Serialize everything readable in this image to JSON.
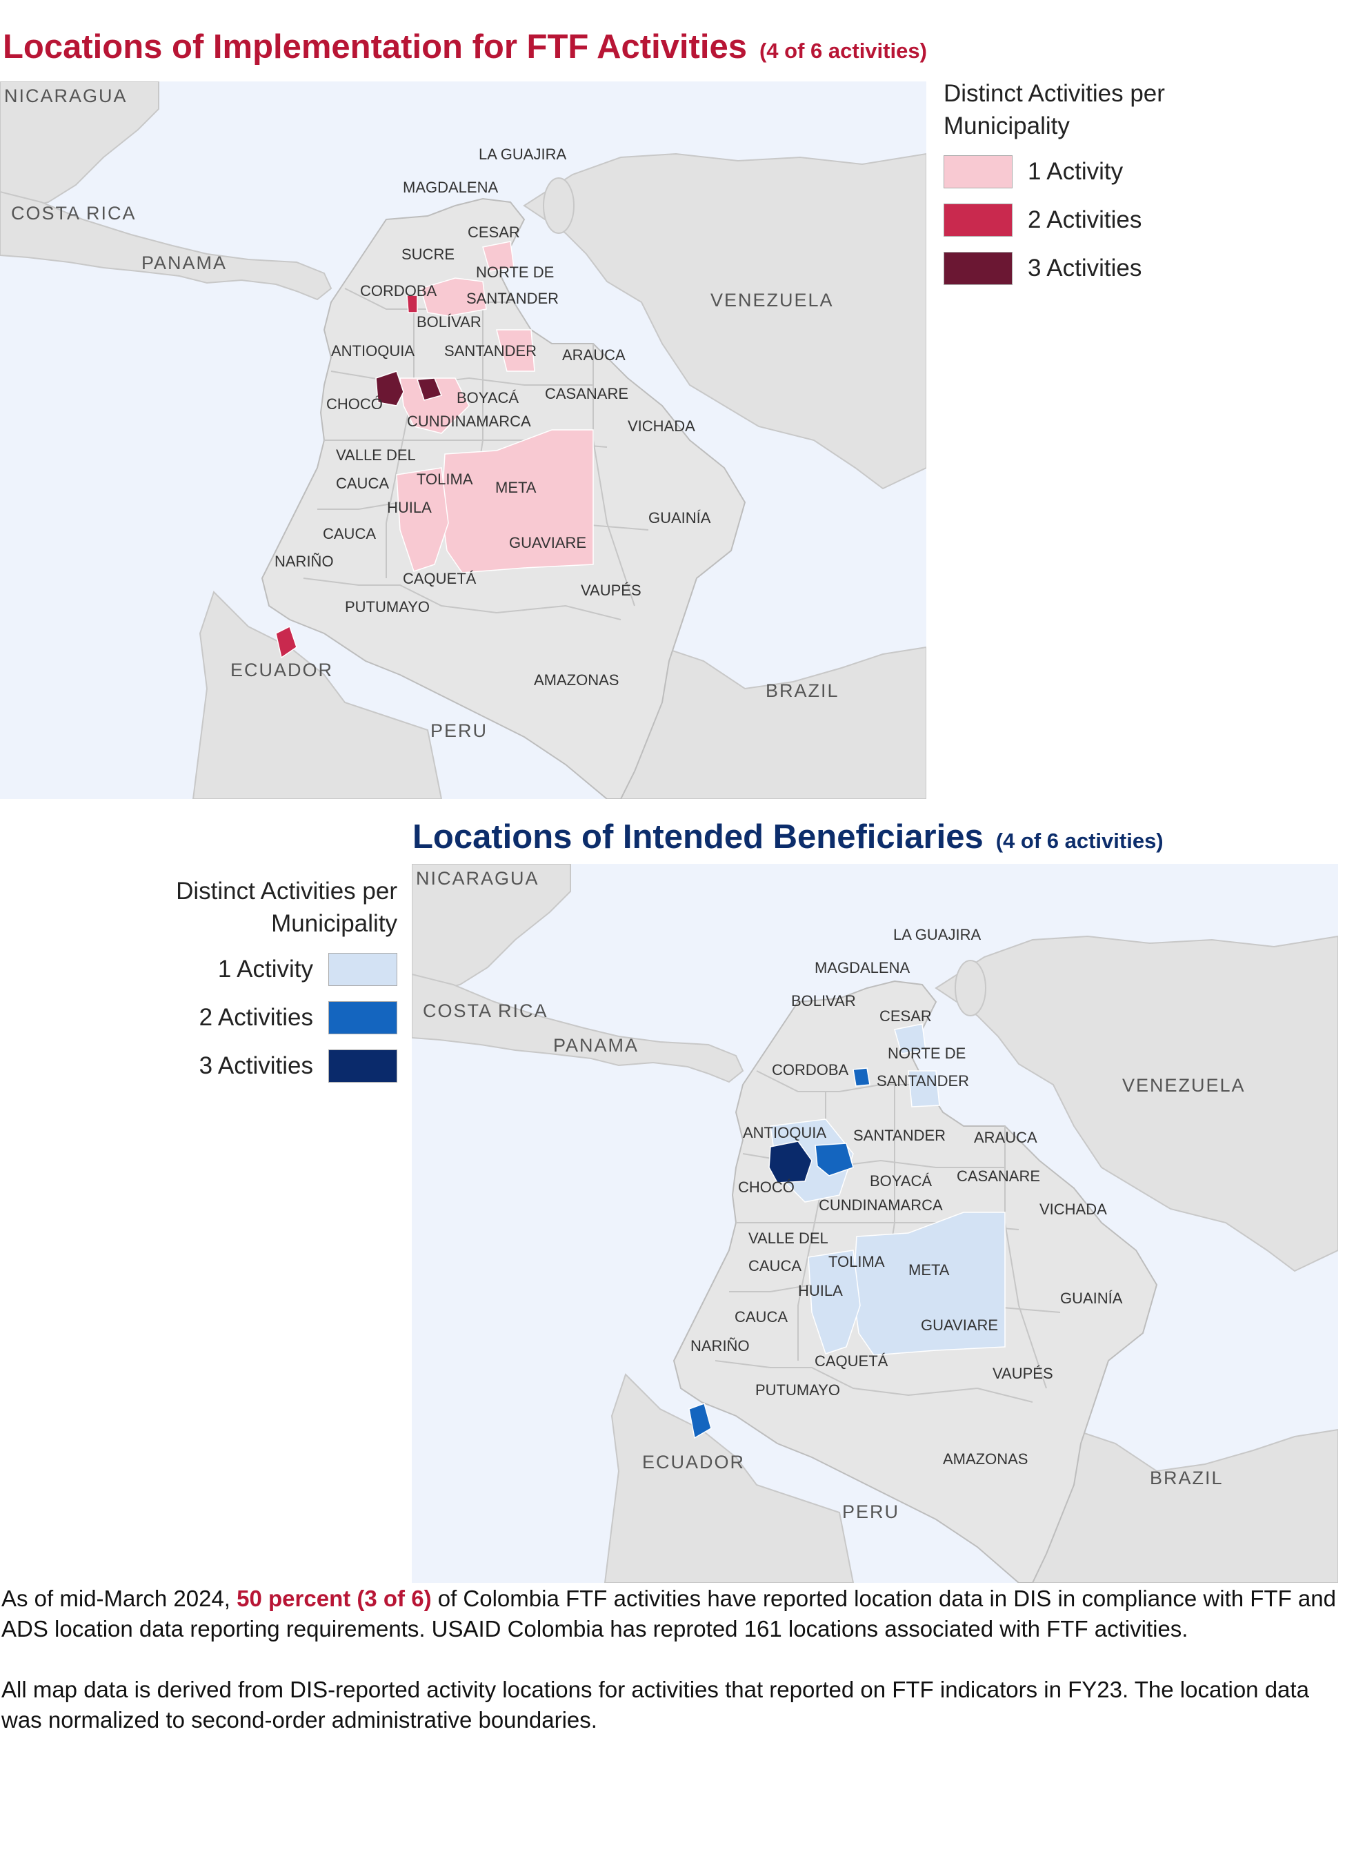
{
  "map1": {
    "title": "Locations of Implementation for FTF Activities",
    "subtitle": "(4 of 6 activities)",
    "legend": {
      "title_line1": "Distinct Activities per",
      "title_line2": "Municipality",
      "items": [
        {
          "label": "1 Activity",
          "color": "#f8c9d2"
        },
        {
          "label": "2 Activities",
          "color": "#c9294e"
        },
        {
          "label": "3 Activities",
          "color": "#6b1733"
        }
      ]
    },
    "labels": {
      "country": [
        "NICARAGUA",
        "COSTA RICA",
        "PANAMA",
        "VENEZUELA",
        "ECUADOR",
        "PERU",
        "BRAZIL"
      ],
      "region": [
        "LA GUAJIRA",
        "MAGDALENA",
        "CESAR",
        "SUCRE",
        "NORTE DE",
        "SANTANDER",
        "CORDOBA",
        "BOLÍVAR",
        "ANTIOQUIA",
        "SANTANDER",
        "ARAUCA",
        "CHOCÓ",
        "BOYACÁ",
        "CASANARE",
        "CUNDINAMARCA",
        "VICHADA",
        "VALLE DEL",
        "CAUCA",
        "TOLIMA",
        "META",
        "HUILA",
        "GUAINÍA",
        "CAUCA",
        "NARIÑO",
        "GUAVIARE",
        "CAQUETÁ",
        "VAUPÉS",
        "PUTUMAYO",
        "AMAZONAS"
      ]
    }
  },
  "map2": {
    "title": "Locations of Intended Beneficiaries",
    "subtitle": "(4 of 6 activities)",
    "legend": {
      "title_line1": "Distinct Activities per",
      "title_line2": "Municipality",
      "items": [
        {
          "label": "1 Activity",
          "color": "#d3e2f4"
        },
        {
          "label": "2 Activities",
          "color": "#1465bf"
        },
        {
          "label": "3 Activities",
          "color": "#0a2a6b"
        }
      ]
    },
    "labels": {
      "country": [
        "NICARAGUA",
        "COSTA RICA",
        "PANAMA",
        "VENEZUELA",
        "ECUADOR",
        "PERU",
        "BRAZIL"
      ],
      "region": [
        "LA GUAJIRA",
        "MAGDALENA",
        "BOLIVAR",
        "CESAR",
        "NORTE DE",
        "SANTANDER",
        "CORDOBA",
        "ANTIOQUIA",
        "SANTANDER",
        "ARAUCA",
        "CHOCÓ",
        "BOYACÁ",
        "CASANARE",
        "CUNDINAMARCA",
        "VICHADA",
        "VALLE DEL",
        "CAUCA",
        "TOLIMA",
        "META",
        "HUILA",
        "GUAINÍA",
        "CAUCA",
        "NARIÑO",
        "GUAVIARE",
        "CAQUETÁ",
        "VAUPÉS",
        "PUTUMAYO",
        "AMAZONAS"
      ]
    }
  },
  "footer": {
    "p1_before": "As of mid-March 2024, ",
    "p1_highlight": "50 percent (3 of 6)",
    "p1_after": " of Colombia FTF activities have reported location data in DIS in compliance with FTF and ADS location data reporting requirements. USAID Colombia has reproted 161 locations associated with FTF activities.",
    "p2": "All map data is derived from DIS-reported activity locations for activities that reported on FTF indicators in FY23. The location data was normalized to second-order administrative boundaries."
  }
}
